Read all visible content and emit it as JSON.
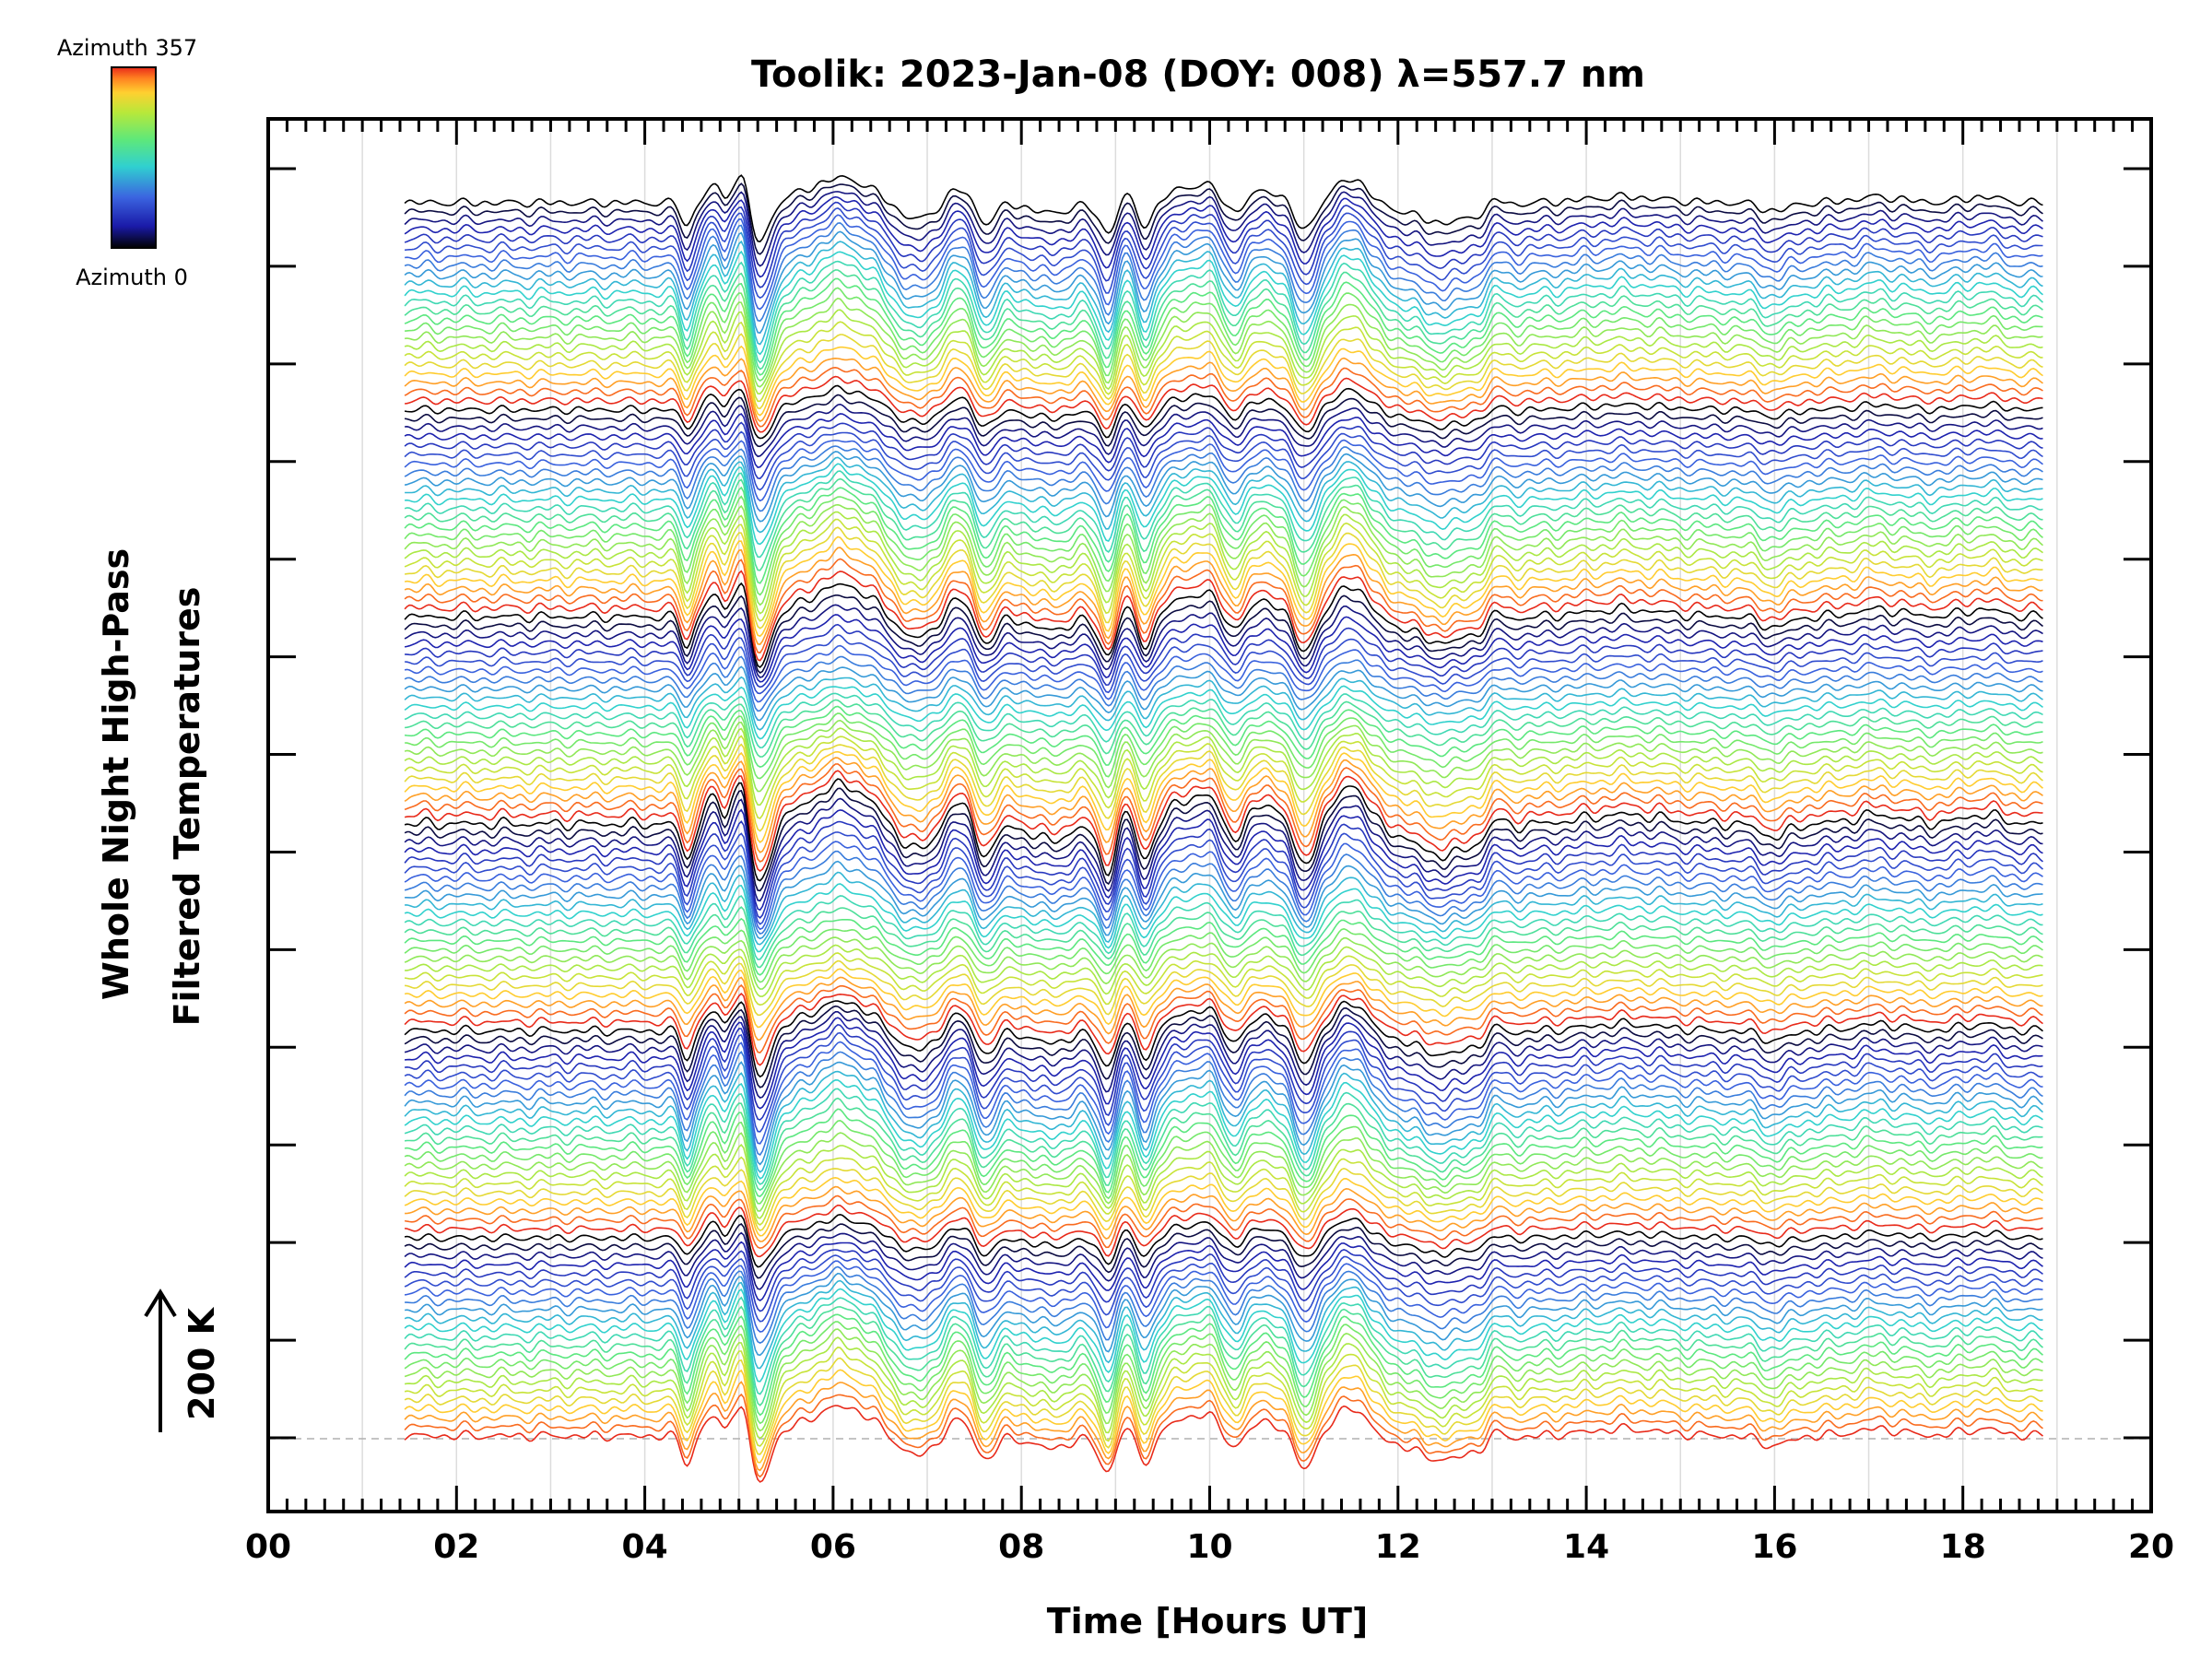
{
  "chart_data": {
    "type": "line",
    "title": "Toolik: 2023-Jan-08 (DOY: 008) λ=557.7 nm",
    "xlabel": "Time [Hours UT]",
    "ylabel_line1": "Whole Night High-Pass",
    "ylabel_line2": "Filtered Temperatures",
    "scale_label": "200 K",
    "xlim": [
      0,
      20
    ],
    "x_ticks": [
      "00",
      "02",
      "04",
      "06",
      "08",
      "10",
      "12",
      "14",
      "16",
      "18",
      "20"
    ],
    "data_range_hours": [
      1.45,
      18.85
    ],
    "colorbar": {
      "top_label": "Azimuth 357",
      "bottom_label": "Azimuth 0",
      "colors": [
        "#000000",
        "#1a1aa8",
        "#3b64e0",
        "#30d0d0",
        "#5ee87a",
        "#b8e83a",
        "#ffd030",
        "#ff8020",
        "#e82a1a"
      ]
    },
    "stacked_traces_count": 138,
    "notable_features_hours": [
      {
        "time": 5.2,
        "feature": "deep trough"
      },
      {
        "time": 6.1,
        "feature": "crest"
      },
      {
        "time": 7.6,
        "feature": "trough"
      },
      {
        "time": 9.0,
        "feature": "trough"
      },
      {
        "time": 11.0,
        "feature": "trough"
      },
      {
        "time": 11.5,
        "feature": "crest"
      },
      {
        "time": 12.5,
        "feature": "broad trough"
      }
    ]
  }
}
